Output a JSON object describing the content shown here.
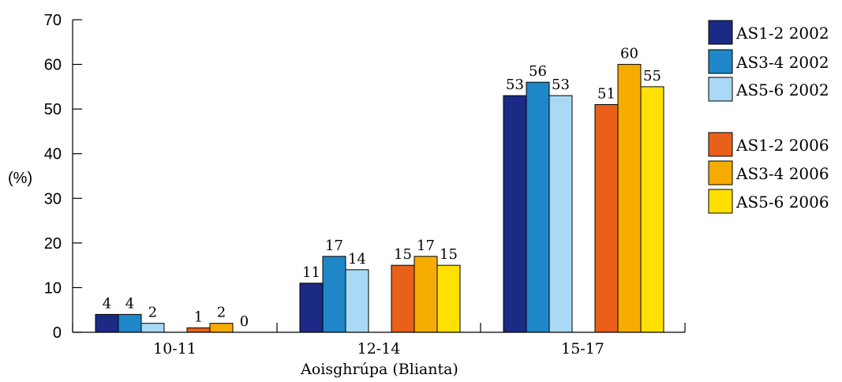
{
  "chart_data": {
    "type": "bar",
    "categories": [
      "10-11",
      "12-14",
      "15-17"
    ],
    "xlabel": "Aoisghrúpa (Blianta)",
    "ylabel": "(%)",
    "ylim": [
      0,
      70
    ],
    "yticks": [
      0,
      10,
      20,
      30,
      40,
      50,
      60,
      70
    ],
    "grid": false,
    "legend_position": "right",
    "series": [
      {
        "name": "AS1-2 2002",
        "color": "#1b2a85",
        "values": [
          4,
          11,
          53
        ]
      },
      {
        "name": "AS3-4 2002",
        "color": "#1f87c8",
        "values": [
          4,
          17,
          56
        ]
      },
      {
        "name": "AS5-6 2002",
        "color": "#a9d9f4",
        "values": [
          2,
          14,
          53
        ]
      },
      {
        "name": "AS1-2 2006",
        "color": "#e8601a",
        "values": [
          1,
          15,
          51
        ]
      },
      {
        "name": "AS3-4 2006",
        "color": "#f6ab00",
        "values": [
          2,
          17,
          60
        ]
      },
      {
        "name": "AS5-6 2006",
        "color": "#ffe000",
        "values": [
          0,
          15,
          55
        ]
      }
    ]
  }
}
